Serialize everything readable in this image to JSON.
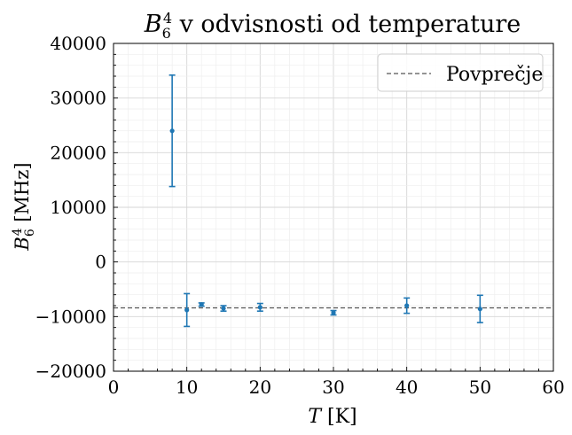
{
  "chart_data": {
    "type": "scatter",
    "title": {
      "base": "B",
      "sub": "6",
      "sup": "4",
      "rest": " v odvisnosti od temperature"
    },
    "xlabel": {
      "var": "T",
      "unit": " [K]"
    },
    "ylabel": {
      "base": "B",
      "sub": "6",
      "sup": "4",
      "unit": " [MHz]"
    },
    "xlim": [
      0,
      60
    ],
    "ylim": [
      -20000,
      40000
    ],
    "xticks": [
      0,
      10,
      20,
      30,
      40,
      50,
      60
    ],
    "yticks": [
      -20000,
      -10000,
      0,
      10000,
      20000,
      30000,
      40000
    ],
    "xtick_labels": [
      "0",
      "10",
      "20",
      "30",
      "40",
      "50",
      "60"
    ],
    "ytick_labels": [
      "−20000",
      "−10000",
      "0",
      "10000",
      "20000",
      "30000",
      "40000"
    ],
    "x_minor_step": 2,
    "y_minor_step": 2000,
    "grid": true,
    "series": [
      {
        "color": "#1f77b4",
        "points": [
          {
            "x": 8,
            "y": 24000,
            "err": 10200
          },
          {
            "x": 10,
            "y": -8800,
            "err": 3000
          },
          {
            "x": 12,
            "y": -7800,
            "err": 300
          },
          {
            "x": 15,
            "y": -8500,
            "err": 500
          },
          {
            "x": 20,
            "y": -8300,
            "err": 700
          },
          {
            "x": 30,
            "y": -9300,
            "err": 400
          },
          {
            "x": 40,
            "y": -8000,
            "err": 1400
          },
          {
            "x": 50,
            "y": -8600,
            "err": 2500
          }
        ]
      }
    ],
    "reference_line": {
      "name": "Povprečje",
      "y": -8400,
      "color": "#555555",
      "style": "dashed"
    },
    "legend": {
      "position": "top-right"
    }
  }
}
